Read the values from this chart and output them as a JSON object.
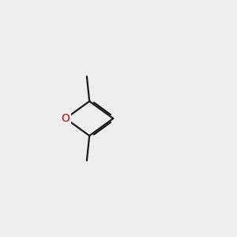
{
  "background_color": "#eeeeee",
  "bond_color": "#1a1a1a",
  "o_color": "#cc0000",
  "n_color": "#0000cc",
  "s_color": "#bbbb00",
  "lw": 1.6,
  "dbo": 0.055
}
